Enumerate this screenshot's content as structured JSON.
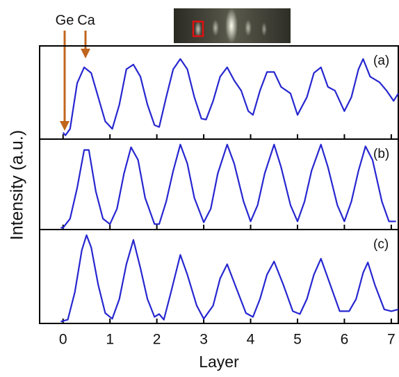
{
  "chart_data": [
    {
      "type": "line",
      "label": "(a)",
      "annotations": [
        "Ge",
        "Ca"
      ],
      "color": "#2626d0",
      "xlim": [
        -0.5,
        7.15
      ],
      "ylim": [
        0,
        1
      ],
      "x": [
        0,
        0.05,
        0.15,
        0.3,
        0.45,
        0.6,
        0.75,
        0.9,
        1.05,
        1.2,
        1.35,
        1.5,
        1.65,
        1.8,
        1.95,
        2.05,
        2.2,
        2.35,
        2.5,
        2.65,
        2.8,
        2.95,
        3.05,
        3.2,
        3.35,
        3.5,
        3.65,
        3.8,
        3.95,
        4.05,
        4.2,
        4.35,
        4.5,
        4.65,
        4.85,
        5.0,
        5.2,
        5.35,
        5.5,
        5.65,
        5.8,
        6.0,
        6.15,
        6.3,
        6.4,
        6.55,
        6.75,
        6.9,
        7.05,
        7.15
      ],
      "values": [
        0.07,
        0.04,
        0.11,
        0.6,
        0.77,
        0.71,
        0.45,
        0.19,
        0.11,
        0.37,
        0.75,
        0.8,
        0.67,
        0.37,
        0.15,
        0.13,
        0.45,
        0.75,
        0.86,
        0.75,
        0.45,
        0.22,
        0.21,
        0.41,
        0.67,
        0.77,
        0.63,
        0.52,
        0.3,
        0.26,
        0.52,
        0.72,
        0.72,
        0.56,
        0.49,
        0.26,
        0.45,
        0.71,
        0.77,
        0.56,
        0.52,
        0.3,
        0.45,
        0.75,
        0.86,
        0.67,
        0.61,
        0.52,
        0.41,
        0.49
      ]
    },
    {
      "type": "line",
      "label": "(b)",
      "ylabel": "Intensity (a.u.)",
      "color": "#2626d0",
      "xlim": [
        -0.5,
        7.15
      ],
      "ylim": [
        0,
        1
      ],
      "x": [
        -0.05,
        0,
        0.15,
        0.3,
        0.45,
        0.55,
        0.7,
        0.85,
        1,
        1.15,
        1.3,
        1.45,
        1.6,
        1.75,
        1.95,
        2.05,
        2.2,
        2.35,
        2.5,
        2.65,
        2.8,
        3,
        3.15,
        3.3,
        3.5,
        3.65,
        3.85,
        4,
        4.15,
        4.3,
        4.5,
        4.65,
        4.85,
        5,
        5.15,
        5.3,
        5.5,
        5.65,
        5.85,
        6,
        6.15,
        6.3,
        6.45,
        6.6,
        6.8,
        6.95,
        7.1
      ],
      "values": [
        0.02,
        0.02,
        0.12,
        0.46,
        0.88,
        0.88,
        0.42,
        0.12,
        0.06,
        0.23,
        0.62,
        0.91,
        0.77,
        0.35,
        0.06,
        0.06,
        0.31,
        0.65,
        0.94,
        0.73,
        0.35,
        0.08,
        0.23,
        0.62,
        0.94,
        0.73,
        0.31,
        0.09,
        0.27,
        0.62,
        0.94,
        0.69,
        0.27,
        0.09,
        0.31,
        0.65,
        0.94,
        0.69,
        0.27,
        0.09,
        0.31,
        0.65,
        0.92,
        0.77,
        0.31,
        0.09,
        0.09
      ]
    },
    {
      "type": "line",
      "label": "(c)",
      "xlabel": "Layer",
      "color": "#2626d0",
      "xlim": [
        -0.5,
        7.15
      ],
      "ylim": [
        0,
        1
      ],
      "xticks": [
        0,
        1,
        2,
        3,
        4,
        5,
        6,
        7
      ],
      "x": [
        -0.05,
        0.1,
        0.25,
        0.4,
        0.5,
        0.6,
        0.75,
        0.9,
        1.05,
        1.2,
        1.35,
        1.5,
        1.65,
        1.8,
        1.95,
        2.05,
        2.15,
        2.3,
        2.5,
        2.65,
        2.85,
        3,
        3.2,
        3.35,
        3.5,
        3.7,
        3.9,
        4.05,
        4.2,
        4.35,
        4.5,
        4.7,
        4.9,
        5.05,
        5.2,
        5.35,
        5.5,
        5.7,
        5.9,
        6.1,
        6.25,
        6.4,
        6.5,
        6.65,
        6.85,
        7,
        7.15
      ],
      "values": [
        0.02,
        0.04,
        0.33,
        0.78,
        0.94,
        0.81,
        0.41,
        0.11,
        0.05,
        0.26,
        0.63,
        0.89,
        0.59,
        0.26,
        0.07,
        0.1,
        0.04,
        0.33,
        0.73,
        0.52,
        0.19,
        0.05,
        0.19,
        0.48,
        0.63,
        0.37,
        0.11,
        0.07,
        0.26,
        0.52,
        0.66,
        0.41,
        0.13,
        0.1,
        0.26,
        0.52,
        0.69,
        0.41,
        0.13,
        0.13,
        0.26,
        0.54,
        0.65,
        0.41,
        0.15,
        0.13,
        0.15
      ]
    }
  ]
}
